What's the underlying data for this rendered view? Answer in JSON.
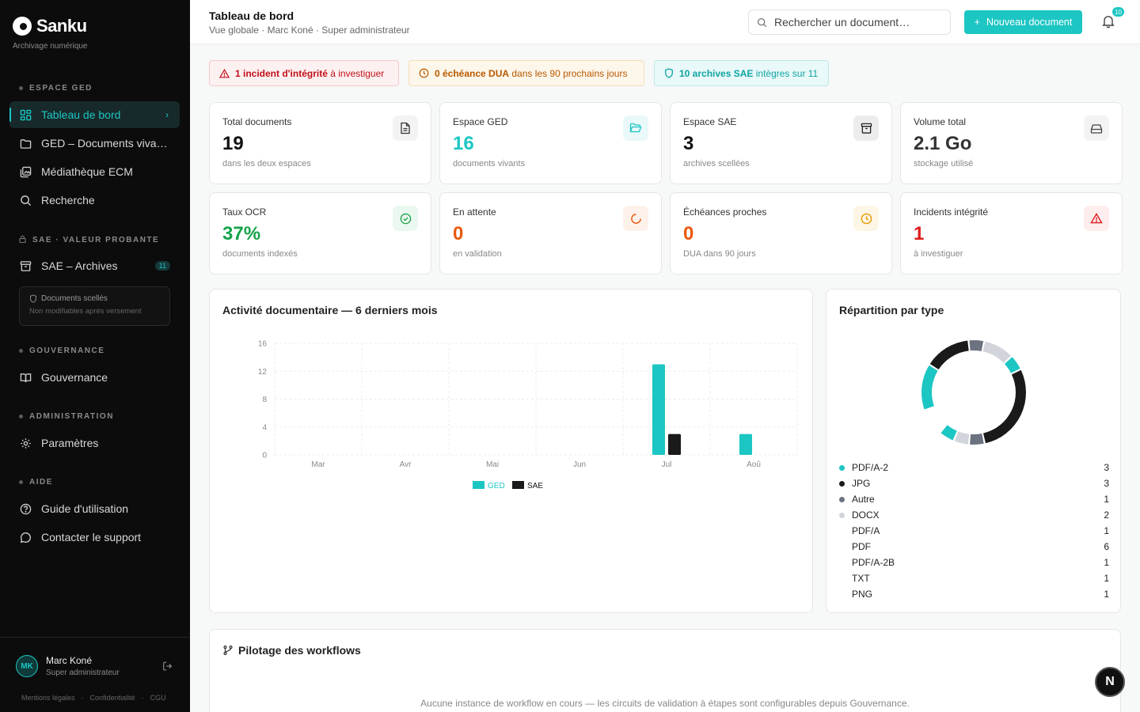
{
  "brand": {
    "name": "Sanku",
    "subtitle": "Archivage numérique"
  },
  "sidebar": {
    "sections": [
      {
        "label": "ESPACE GED"
      },
      {
        "label": "SAE · VALEUR PROBANTE"
      },
      {
        "label": "GOUVERNANCE"
      },
      {
        "label": "ADMINISTRATION"
      },
      {
        "label": "AIDE"
      }
    ],
    "items": [
      {
        "label": "Tableau de bord",
        "icon": "dashboard-icon"
      },
      {
        "label": "GED – Documents vivants",
        "icon": "folder-icon"
      },
      {
        "label": "Médiathèque ECM",
        "icon": "media-icon"
      },
      {
        "label": "Recherche",
        "icon": "search-icon"
      },
      {
        "label": "SAE – Archives",
        "icon": "archive-icon",
        "count": "11"
      },
      {
        "label": "Gouvernance",
        "icon": "book-icon"
      },
      {
        "label": "Paramètres",
        "icon": "gear-icon"
      },
      {
        "label": "Guide d'utilisation",
        "icon": "help-icon"
      },
      {
        "label": "Contacter le support",
        "icon": "chat-icon"
      }
    ],
    "sealed": {
      "title": "Documents scellés",
      "subtitle": "Non modifiables après versement"
    },
    "user": {
      "initials": "MK",
      "name": "Marc Koné",
      "role": "Super administrateur"
    },
    "footer_links": [
      "Mentions légales",
      "Confidentialité",
      "CGU"
    ]
  },
  "header": {
    "title": "Tableau de bord",
    "subtitle": "Vue globale · Marc Koné · Super administrateur",
    "search_placeholder": "Rechercher un document…",
    "new_button": "Nouveau document",
    "notifications": "10"
  },
  "alerts": [
    {
      "strong": "1 incident d'intégrité",
      "rest": " à investiguer",
      "color": "#c0101a"
    },
    {
      "strong": "0 échéance DUA",
      "rest": " dans les 90 prochains jours",
      "color": "#b85a00"
    },
    {
      "strong": "10 archives SAE",
      "rest": " intègres sur 11",
      "color": "#0ea5a3"
    }
  ],
  "kpis": [
    {
      "label": "Total documents",
      "value": "19",
      "sub": "dans les deux espaces",
      "color": "#111111",
      "icon": "document-icon"
    },
    {
      "label": "Espace GED",
      "value": "16",
      "sub": "documents vivants",
      "color": "#1cc6c3",
      "icon": "folder-open-icon"
    },
    {
      "label": "Espace SAE",
      "value": "3",
      "sub": "archives scellées",
      "color": "#111111",
      "icon": "archive-box-icon"
    },
    {
      "label": "Volume total",
      "value": "2.1 Go",
      "sub": "stockage utilisé",
      "color": "#333333",
      "icon": "hard-drive-icon"
    },
    {
      "label": "Taux OCR",
      "value": "37%",
      "sub": "documents indexés",
      "color": "#16a34a",
      "icon": "check-circle-icon"
    },
    {
      "label": "En attente",
      "value": "0",
      "sub": "en validation",
      "color": "#ea580c",
      "icon": "loader-icon"
    },
    {
      "label": "Échéances proches",
      "value": "0",
      "sub": "DUA dans 90 jours",
      "color": "#ea580c",
      "icon": "clock-icon"
    },
    {
      "label": "Incidents intégrité",
      "value": "1",
      "sub": "à investiguer",
      "color": "#dc1d1d",
      "icon": "warning-icon"
    }
  ],
  "activity": {
    "title": "Activité documentaire — 6 derniers mois"
  },
  "chart_data": [
    {
      "type": "bar",
      "title": "Activité documentaire — 6 derniers mois",
      "categories": [
        "Mar",
        "Avr",
        "Mai",
        "Jun",
        "Jul",
        "Aoû"
      ],
      "series": [
        {
          "name": "GED",
          "values": [
            0,
            0,
            0,
            0,
            13,
            3
          ],
          "color": "#1cc6c3"
        },
        {
          "name": "SAE",
          "values": [
            0,
            0,
            0,
            0,
            3,
            0
          ],
          "color": "#1a1a1a"
        }
      ],
      "yticks": [
        0,
        4,
        8,
        12,
        16
      ],
      "ylim": [
        0,
        16
      ],
      "grid": true,
      "legend": "bottom"
    },
    {
      "type": "pie",
      "title": "Répartition par type",
      "labels": [
        "PDF/A-2",
        "JPG",
        "Autre",
        "DOCX",
        "PDF/A",
        "PDF",
        "PDF/A-2B",
        "TXT",
        "PNG"
      ],
      "values": [
        3,
        3,
        1,
        2,
        1,
        6,
        1,
        1,
        1
      ],
      "colors": [
        "#1cc6c3",
        "#1a1a1a",
        "#6b7280",
        "#d1d5db",
        "#1cc6c3",
        "#1a1a1a",
        "#6b7280",
        "#d1d5db",
        "#1cc6c3"
      ],
      "donut": true,
      "legend_dots": [
        true,
        true,
        true,
        true,
        false,
        false,
        false,
        false,
        false
      ]
    }
  ],
  "workflow": {
    "title": "Pilotage des workflows",
    "empty": "Aucune instance de workflow en cours — les circuits de validation à étapes sont configurables depuis Gouvernance."
  },
  "fab": "N"
}
